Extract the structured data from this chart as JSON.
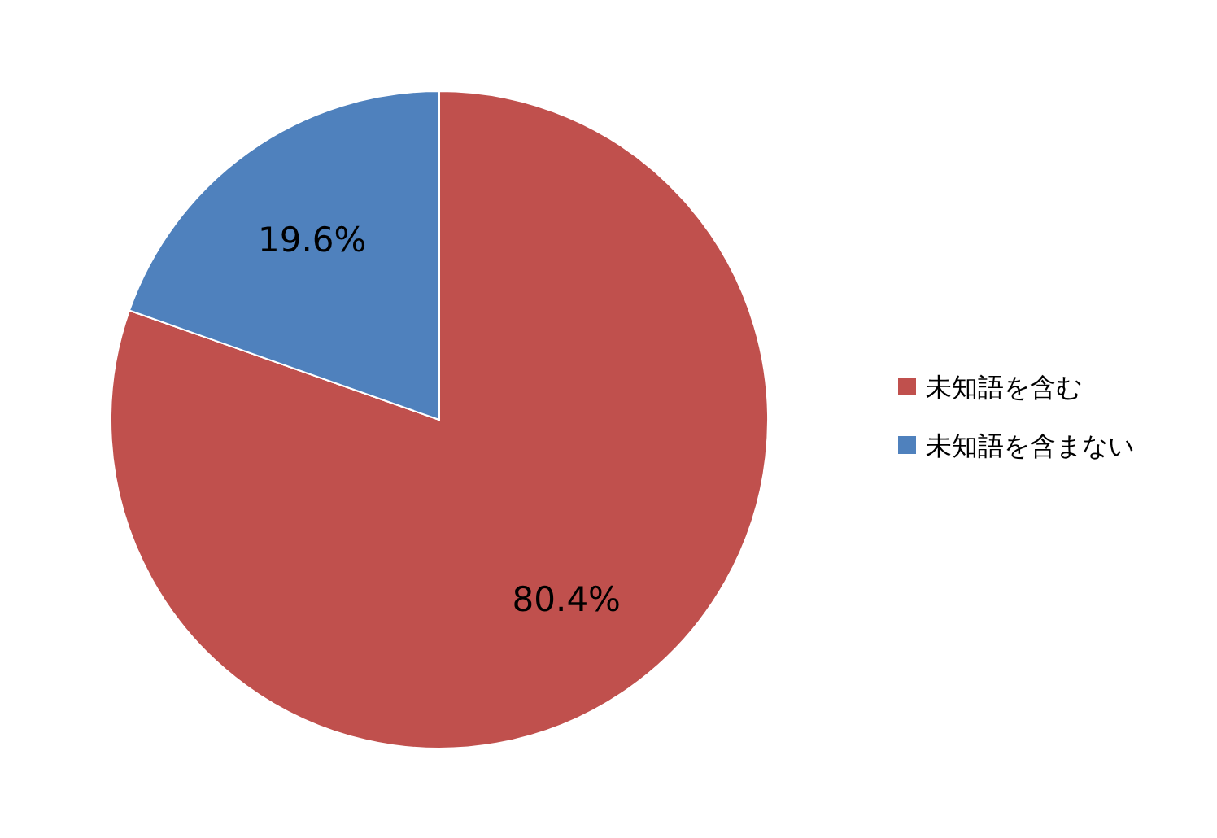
{
  "chart_data": {
    "type": "pie",
    "categories": [
      "未知語を含む",
      "未知語を含まない"
    ],
    "values": [
      80.4,
      19.6
    ],
    "colors": [
      "#c0504d",
      "#4f81bd"
    ],
    "value_labels": [
      "80.4%",
      "19.6%"
    ],
    "legend": "right"
  }
}
